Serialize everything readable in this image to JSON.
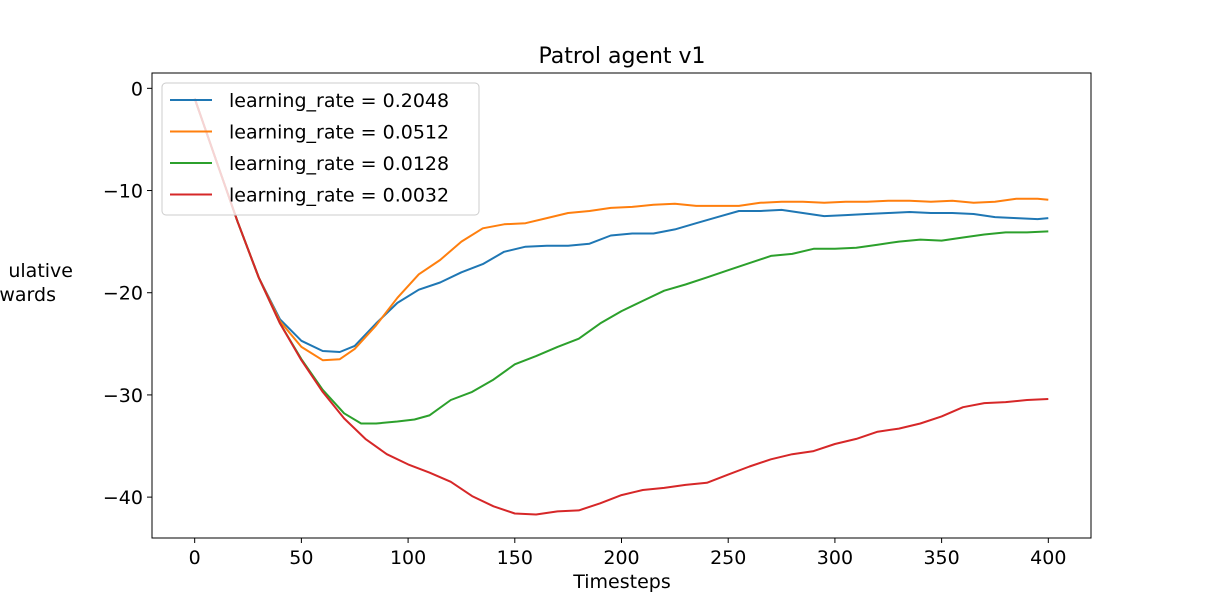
{
  "chart_data": {
    "type": "line",
    "title": "Patrol agent v1",
    "xlabel": "Timesteps",
    "ylabel_lines": [
      "ulative",
      "wards"
    ],
    "xlim": [
      -20,
      420
    ],
    "ylim": [
      -44,
      1.5
    ],
    "xticks": [
      0,
      50,
      100,
      150,
      200,
      250,
      300,
      350,
      400
    ],
    "yticks": [
      0,
      -10,
      -20,
      -30,
      -40
    ],
    "xtick_labels": [
      "0",
      "50",
      "100",
      "150",
      "200",
      "250",
      "300",
      "350",
      "400"
    ],
    "ytick_labels": [
      "0",
      "−10",
      "−20",
      "−30",
      "−40"
    ],
    "grid": false,
    "legend_position": "top-left",
    "series": [
      {
        "name": "learning_rate = 0.2048",
        "color": "#1f77b4",
        "points": [
          [
            0,
            -1
          ],
          [
            10,
            -7
          ],
          [
            20,
            -13
          ],
          [
            30,
            -18.5
          ],
          [
            40,
            -22.6
          ],
          [
            50,
            -24.7
          ],
          [
            60,
            -25.7
          ],
          [
            68,
            -25.8
          ],
          [
            75,
            -25.2
          ],
          [
            85,
            -23
          ],
          [
            95,
            -21
          ],
          [
            105,
            -19.7
          ],
          [
            115,
            -19
          ],
          [
            125,
            -18
          ],
          [
            135,
            -17.2
          ],
          [
            145,
            -16
          ],
          [
            155,
            -15.5
          ],
          [
            165,
            -15.4
          ],
          [
            175,
            -15.4
          ],
          [
            185,
            -15.2
          ],
          [
            195,
            -14.4
          ],
          [
            205,
            -14.2
          ],
          [
            215,
            -14.2
          ],
          [
            225,
            -13.8
          ],
          [
            235,
            -13.2
          ],
          [
            245,
            -12.6
          ],
          [
            255,
            -12
          ],
          [
            265,
            -12
          ],
          [
            275,
            -11.9
          ],
          [
            285,
            -12.2
          ],
          [
            295,
            -12.5
          ],
          [
            305,
            -12.4
          ],
          [
            315,
            -12.3
          ],
          [
            325,
            -12.2
          ],
          [
            335,
            -12.1
          ],
          [
            345,
            -12.2
          ],
          [
            355,
            -12.2
          ],
          [
            365,
            -12.3
          ],
          [
            375,
            -12.6
          ],
          [
            385,
            -12.7
          ],
          [
            395,
            -12.8
          ],
          [
            400,
            -12.7
          ]
        ]
      },
      {
        "name": "learning_rate = 0.0512",
        "color": "#ff7f0e",
        "points": [
          [
            0,
            -1
          ],
          [
            10,
            -7
          ],
          [
            20,
            -13
          ],
          [
            30,
            -18.5
          ],
          [
            40,
            -22.8
          ],
          [
            50,
            -25.3
          ],
          [
            60,
            -26.6
          ],
          [
            68,
            -26.5
          ],
          [
            75,
            -25.5
          ],
          [
            85,
            -23.2
          ],
          [
            95,
            -20.5
          ],
          [
            105,
            -18.2
          ],
          [
            115,
            -16.8
          ],
          [
            125,
            -15
          ],
          [
            135,
            -13.7
          ],
          [
            145,
            -13.3
          ],
          [
            155,
            -13.2
          ],
          [
            165,
            -12.7
          ],
          [
            175,
            -12.2
          ],
          [
            185,
            -12
          ],
          [
            195,
            -11.7
          ],
          [
            205,
            -11.6
          ],
          [
            215,
            -11.4
          ],
          [
            225,
            -11.3
          ],
          [
            235,
            -11.5
          ],
          [
            245,
            -11.5
          ],
          [
            255,
            -11.5
          ],
          [
            265,
            -11.2
          ],
          [
            275,
            -11.1
          ],
          [
            285,
            -11.1
          ],
          [
            295,
            -11.2
          ],
          [
            305,
            -11.1
          ],
          [
            315,
            -11.1
          ],
          [
            325,
            -11
          ],
          [
            335,
            -11
          ],
          [
            345,
            -11.1
          ],
          [
            355,
            -11
          ],
          [
            365,
            -11.2
          ],
          [
            375,
            -11.1
          ],
          [
            385,
            -10.8
          ],
          [
            395,
            -10.8
          ],
          [
            400,
            -10.9
          ]
        ]
      },
      {
        "name": "learning_rate = 0.0128",
        "color": "#2ca02c",
        "points": [
          [
            0,
            -1
          ],
          [
            10,
            -7
          ],
          [
            20,
            -13
          ],
          [
            30,
            -18.5
          ],
          [
            40,
            -23
          ],
          [
            50,
            -26.5
          ],
          [
            60,
            -29.5
          ],
          [
            70,
            -31.8
          ],
          [
            78,
            -32.8
          ],
          [
            85,
            -32.8
          ],
          [
            95,
            -32.6
          ],
          [
            103,
            -32.4
          ],
          [
            110,
            -32
          ],
          [
            120,
            -30.5
          ],
          [
            130,
            -29.7
          ],
          [
            140,
            -28.5
          ],
          [
            150,
            -27
          ],
          [
            160,
            -26.2
          ],
          [
            170,
            -25.3
          ],
          [
            180,
            -24.5
          ],
          [
            190,
            -23
          ],
          [
            200,
            -21.8
          ],
          [
            210,
            -20.8
          ],
          [
            220,
            -19.8
          ],
          [
            230,
            -19.2
          ],
          [
            240,
            -18.5
          ],
          [
            250,
            -17.8
          ],
          [
            260,
            -17.1
          ],
          [
            270,
            -16.4
          ],
          [
            280,
            -16.2
          ],
          [
            290,
            -15.7
          ],
          [
            300,
            -15.7
          ],
          [
            310,
            -15.6
          ],
          [
            320,
            -15.3
          ],
          [
            330,
            -15
          ],
          [
            340,
            -14.8
          ],
          [
            350,
            -14.9
          ],
          [
            360,
            -14.6
          ],
          [
            370,
            -14.3
          ],
          [
            380,
            -14.1
          ],
          [
            390,
            -14.1
          ],
          [
            400,
            -14
          ]
        ]
      },
      {
        "name": "learning_rate = 0.0032",
        "color": "#d62728",
        "points": [
          [
            0,
            -1
          ],
          [
            10,
            -7
          ],
          [
            20,
            -13
          ],
          [
            30,
            -18.5
          ],
          [
            40,
            -23
          ],
          [
            50,
            -26.6
          ],
          [
            60,
            -29.7
          ],
          [
            70,
            -32.3
          ],
          [
            80,
            -34.3
          ],
          [
            90,
            -35.8
          ],
          [
            100,
            -36.8
          ],
          [
            110,
            -37.6
          ],
          [
            120,
            -38.5
          ],
          [
            130,
            -39.9
          ],
          [
            140,
            -40.9
          ],
          [
            150,
            -41.6
          ],
          [
            160,
            -41.7
          ],
          [
            170,
            -41.4
          ],
          [
            180,
            -41.3
          ],
          [
            190,
            -40.6
          ],
          [
            200,
            -39.8
          ],
          [
            210,
            -39.3
          ],
          [
            220,
            -39.1
          ],
          [
            230,
            -38.8
          ],
          [
            240,
            -38.6
          ],
          [
            250,
            -37.8
          ],
          [
            260,
            -37
          ],
          [
            270,
            -36.3
          ],
          [
            280,
            -35.8
          ],
          [
            290,
            -35.5
          ],
          [
            300,
            -34.8
          ],
          [
            310,
            -34.3
          ],
          [
            320,
            -33.6
          ],
          [
            330,
            -33.3
          ],
          [
            340,
            -32.8
          ],
          [
            350,
            -32.1
          ],
          [
            360,
            -31.2
          ],
          [
            370,
            -30.8
          ],
          [
            380,
            -30.7
          ],
          [
            390,
            -30.5
          ],
          [
            400,
            -30.4
          ]
        ]
      }
    ]
  }
}
